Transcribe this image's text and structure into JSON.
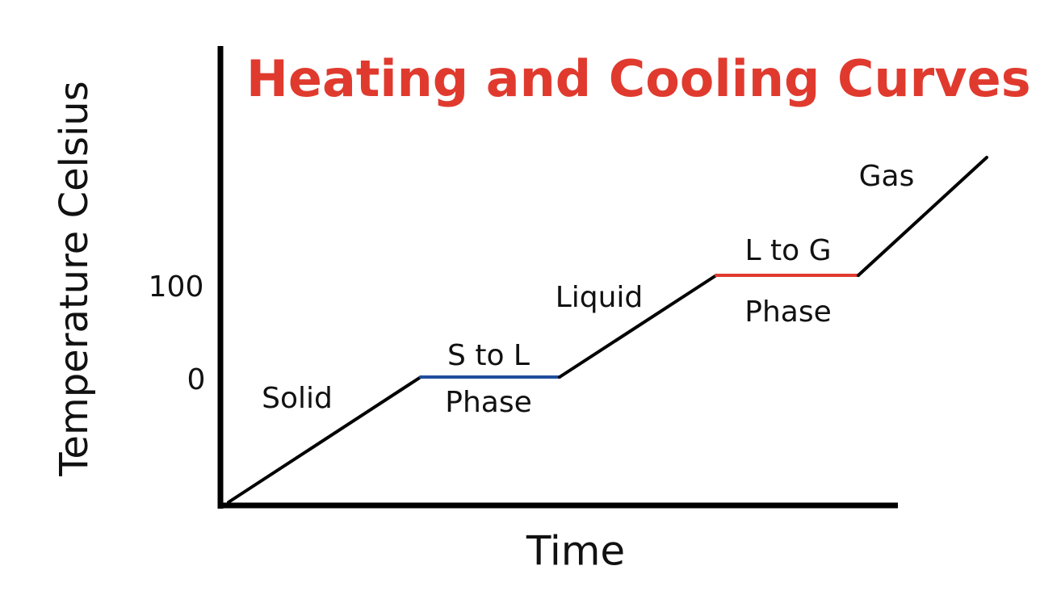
{
  "title": "Heating and Cooling Curves",
  "axes": {
    "y_label": "Temperature Celsius",
    "x_label": "Time",
    "y_ticks": [
      "100",
      "0"
    ]
  },
  "regions": [
    {
      "lines": [
        "Solid"
      ]
    },
    {
      "lines": [
        "S to L",
        "Phase"
      ]
    },
    {
      "lines": [
        "Liquid"
      ]
    },
    {
      "lines": [
        "L to G",
        "Phase"
      ]
    },
    {
      "lines": [
        "Gas"
      ]
    }
  ]
}
